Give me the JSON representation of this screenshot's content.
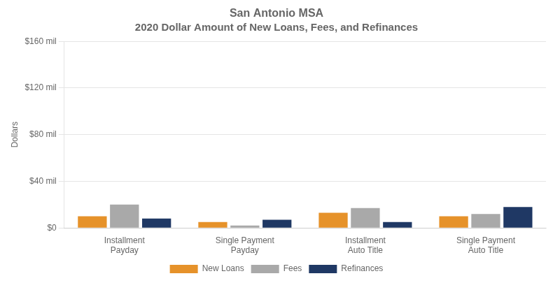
{
  "chart_data": {
    "type": "bar",
    "title": "San Antonio MSA",
    "subtitle": "2020 Dollar Amount of New Loans, Fees, and Refinances",
    "y_label": "Dollars",
    "categories": [
      "Installment\nPayday",
      "Single Payment\nPayday",
      "Installment\nAuto Title",
      "Single Payment\nAuto Title"
    ],
    "series": [
      {
        "name": "New Loans",
        "color": "#E6922A",
        "values": [
          10,
          5,
          13,
          10
        ]
      },
      {
        "name": "Fees",
        "color": "#A9A9A9",
        "values": [
          20,
          2,
          17,
          12
        ]
      },
      {
        "name": "Refinances",
        "color": "#1F3864",
        "values": [
          8,
          7,
          5,
          18
        ]
      }
    ],
    "ylim": [
      0,
      160
    ],
    "yticks": [
      {
        "value": 0,
        "label": "$0"
      },
      {
        "value": 40,
        "label": "$40 mil"
      },
      {
        "value": 80,
        "label": "$80 mil"
      },
      {
        "value": 120,
        "label": "$120 mil"
      },
      {
        "value": 160,
        "label": "$160 mil"
      }
    ],
    "grid": true,
    "legend": "bottom"
  }
}
